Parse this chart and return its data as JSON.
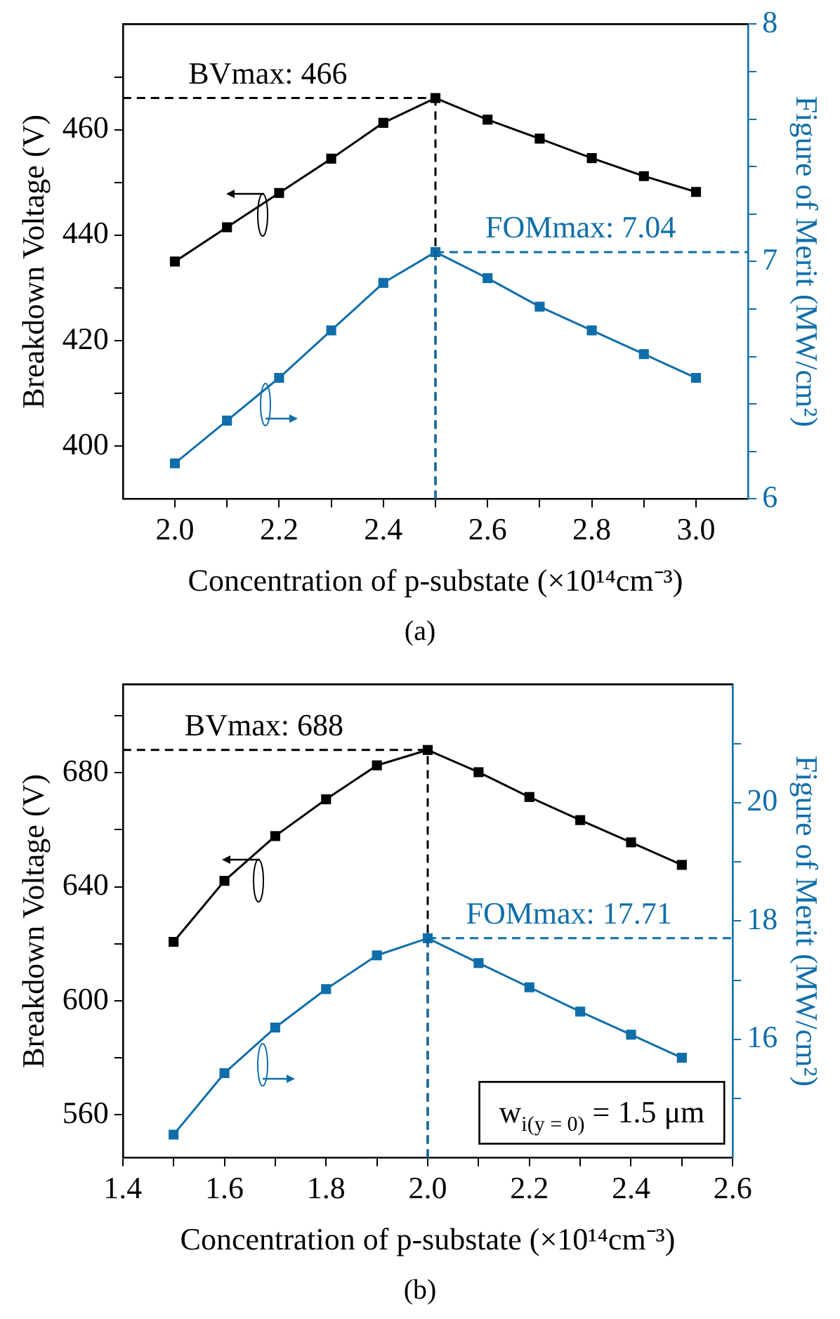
{
  "chart_data": [
    {
      "type": "line",
      "title": "(a)",
      "xlabel": "Concentration of p-substate (×10¹⁴cm⁻³)",
      "ylabel": "Breakdown Voltage (V)",
      "y2label": "Figure of Merit (MW/cm²)",
      "x": [
        2.0,
        2.1,
        2.2,
        2.3,
        2.4,
        2.5,
        2.6,
        2.7,
        2.8,
        2.9,
        3.0
      ],
      "series": [
        {
          "color": "#000000",
          "values": [
            435,
            441.5,
            448,
            454.5,
            461.3,
            466,
            461.9,
            458.3,
            454.6,
            451.2,
            448.2
          ]
        },
        {
          "color": "#0f6eaa",
          "axis": "y2",
          "values": [
            6.15,
            6.33,
            6.51,
            6.71,
            6.91,
            7.04,
            6.93,
            6.81,
            6.71,
            6.61,
            6.51
          ]
        }
      ],
      "xlim": [
        1.9,
        3.1
      ],
      "xticks": [
        {
          "value": 2,
          "label": "2.0"
        },
        {
          "value": 2.1,
          "label": null
        },
        2.2,
        {
          "value": 2.3,
          "label": null
        },
        2.4,
        {
          "value": 2.5,
          "label": null
        },
        2.6,
        {
          "value": 2.7,
          "label": null
        },
        2.8,
        {
          "value": 2.9,
          "label": null
        },
        {
          "value": 3,
          "label": "3.0"
        }
      ],
      "ylim": [
        390,
        480
      ],
      "yticks": [
        400,
        {
          "value": 410,
          "label": null
        },
        420,
        {
          "value": 430,
          "label": null
        },
        440,
        {
          "value": 450,
          "label": null
        },
        460,
        {
          "value": 470,
          "label": null
        }
      ],
      "y2lim": [
        6,
        8
      ],
      "y2ticks": [
        6,
        {
          "value": 6.2,
          "label": null
        },
        {
          "value": 6.4,
          "label": null
        },
        {
          "value": 6.6,
          "label": null
        },
        {
          "value": 6.8,
          "label": null
        },
        7,
        {
          "value": 7.2,
          "label": null
        },
        {
          "value": 7.4,
          "label": null
        },
        {
          "value": 7.6,
          "label": null
        },
        {
          "value": 7.8,
          "label": null
        },
        8
      ],
      "ref_lines": [
        {
          "axis": "y",
          "value": 466,
          "label": "BVmax: 466",
          "color": "#000000",
          "line_style": "dashed"
        },
        {
          "axis": "y2",
          "value": 7.04,
          "label": "FOMmax: 7.04",
          "color": "#0f6eaa",
          "line_style": "dashed"
        },
        {
          "axis": "x",
          "value": 2.5,
          "line_style": "dashed"
        }
      ],
      "marker": "square",
      "line_style": "solid"
    },
    {
      "type": "line",
      "title": "(b)",
      "xlabel": "Concentration of p-substate (×10¹⁴cm⁻³)",
      "ylabel": "Breakdown Voltage (V)",
      "y2label": "Figure of Merit (MW/cm²)",
      "x": [
        1.5,
        1.6,
        1.7,
        1.8,
        1.9,
        2.0,
        2.1,
        2.2,
        2.3,
        2.4,
        2.5
      ],
      "series": [
        {
          "color": "#000000",
          "values": [
            620.7,
            642.1,
            657.8,
            670.7,
            682.6,
            688,
            680.2,
            671.5,
            663.4,
            655.6,
            647.7
          ]
        },
        {
          "color": "#0f6eaa",
          "axis": "y2",
          "values": [
            14.39,
            15.43,
            16.2,
            16.85,
            17.42,
            17.71,
            17.29,
            16.88,
            16.47,
            16.08,
            15.69
          ]
        }
      ],
      "xlim": [
        1.4,
        2.6
      ],
      "xticks": [
        1.4,
        {
          "value": 1.5,
          "label": null
        },
        1.6,
        {
          "value": 1.7,
          "label": null
        },
        1.8,
        {
          "value": 1.9,
          "label": null
        },
        {
          "value": 2,
          "label": "2.0"
        },
        {
          "value": 2.1,
          "label": null
        },
        2.2,
        {
          "value": 2.3,
          "label": null
        },
        2.4,
        {
          "value": 2.5,
          "label": null
        },
        2.6
      ],
      "ylim": [
        545,
        711
      ],
      "yticks": [
        560,
        {
          "value": 580,
          "label": null
        },
        600,
        {
          "value": 620,
          "label": null
        },
        640,
        {
          "value": 660,
          "label": null
        },
        680,
        {
          "value": 700,
          "label": null
        }
      ],
      "y2lim": [
        14,
        22
      ],
      "y2ticks": [
        {
          "value": 15,
          "label": null
        },
        16,
        {
          "value": 17,
          "label": null
        },
        18,
        {
          "value": 19,
          "label": null
        },
        20,
        {
          "value": 21,
          "label": null
        }
      ],
      "ref_lines": [
        {
          "axis": "y",
          "value": 688,
          "label": "BVmax: 688",
          "color": "#000000",
          "line_style": "dashed"
        },
        {
          "axis": "y2",
          "value": 17.71,
          "label": "FOMmax: 17.71",
          "color": "#0f6eaa",
          "line_style": "dashed"
        },
        {
          "axis": "x",
          "value": 2.0,
          "line_style": "dashed"
        }
      ],
      "annotations": [
        "w$_{i(y = 0)}$ = 1.5 μm"
      ],
      "marker": "square",
      "line_style": "solid"
    }
  ]
}
